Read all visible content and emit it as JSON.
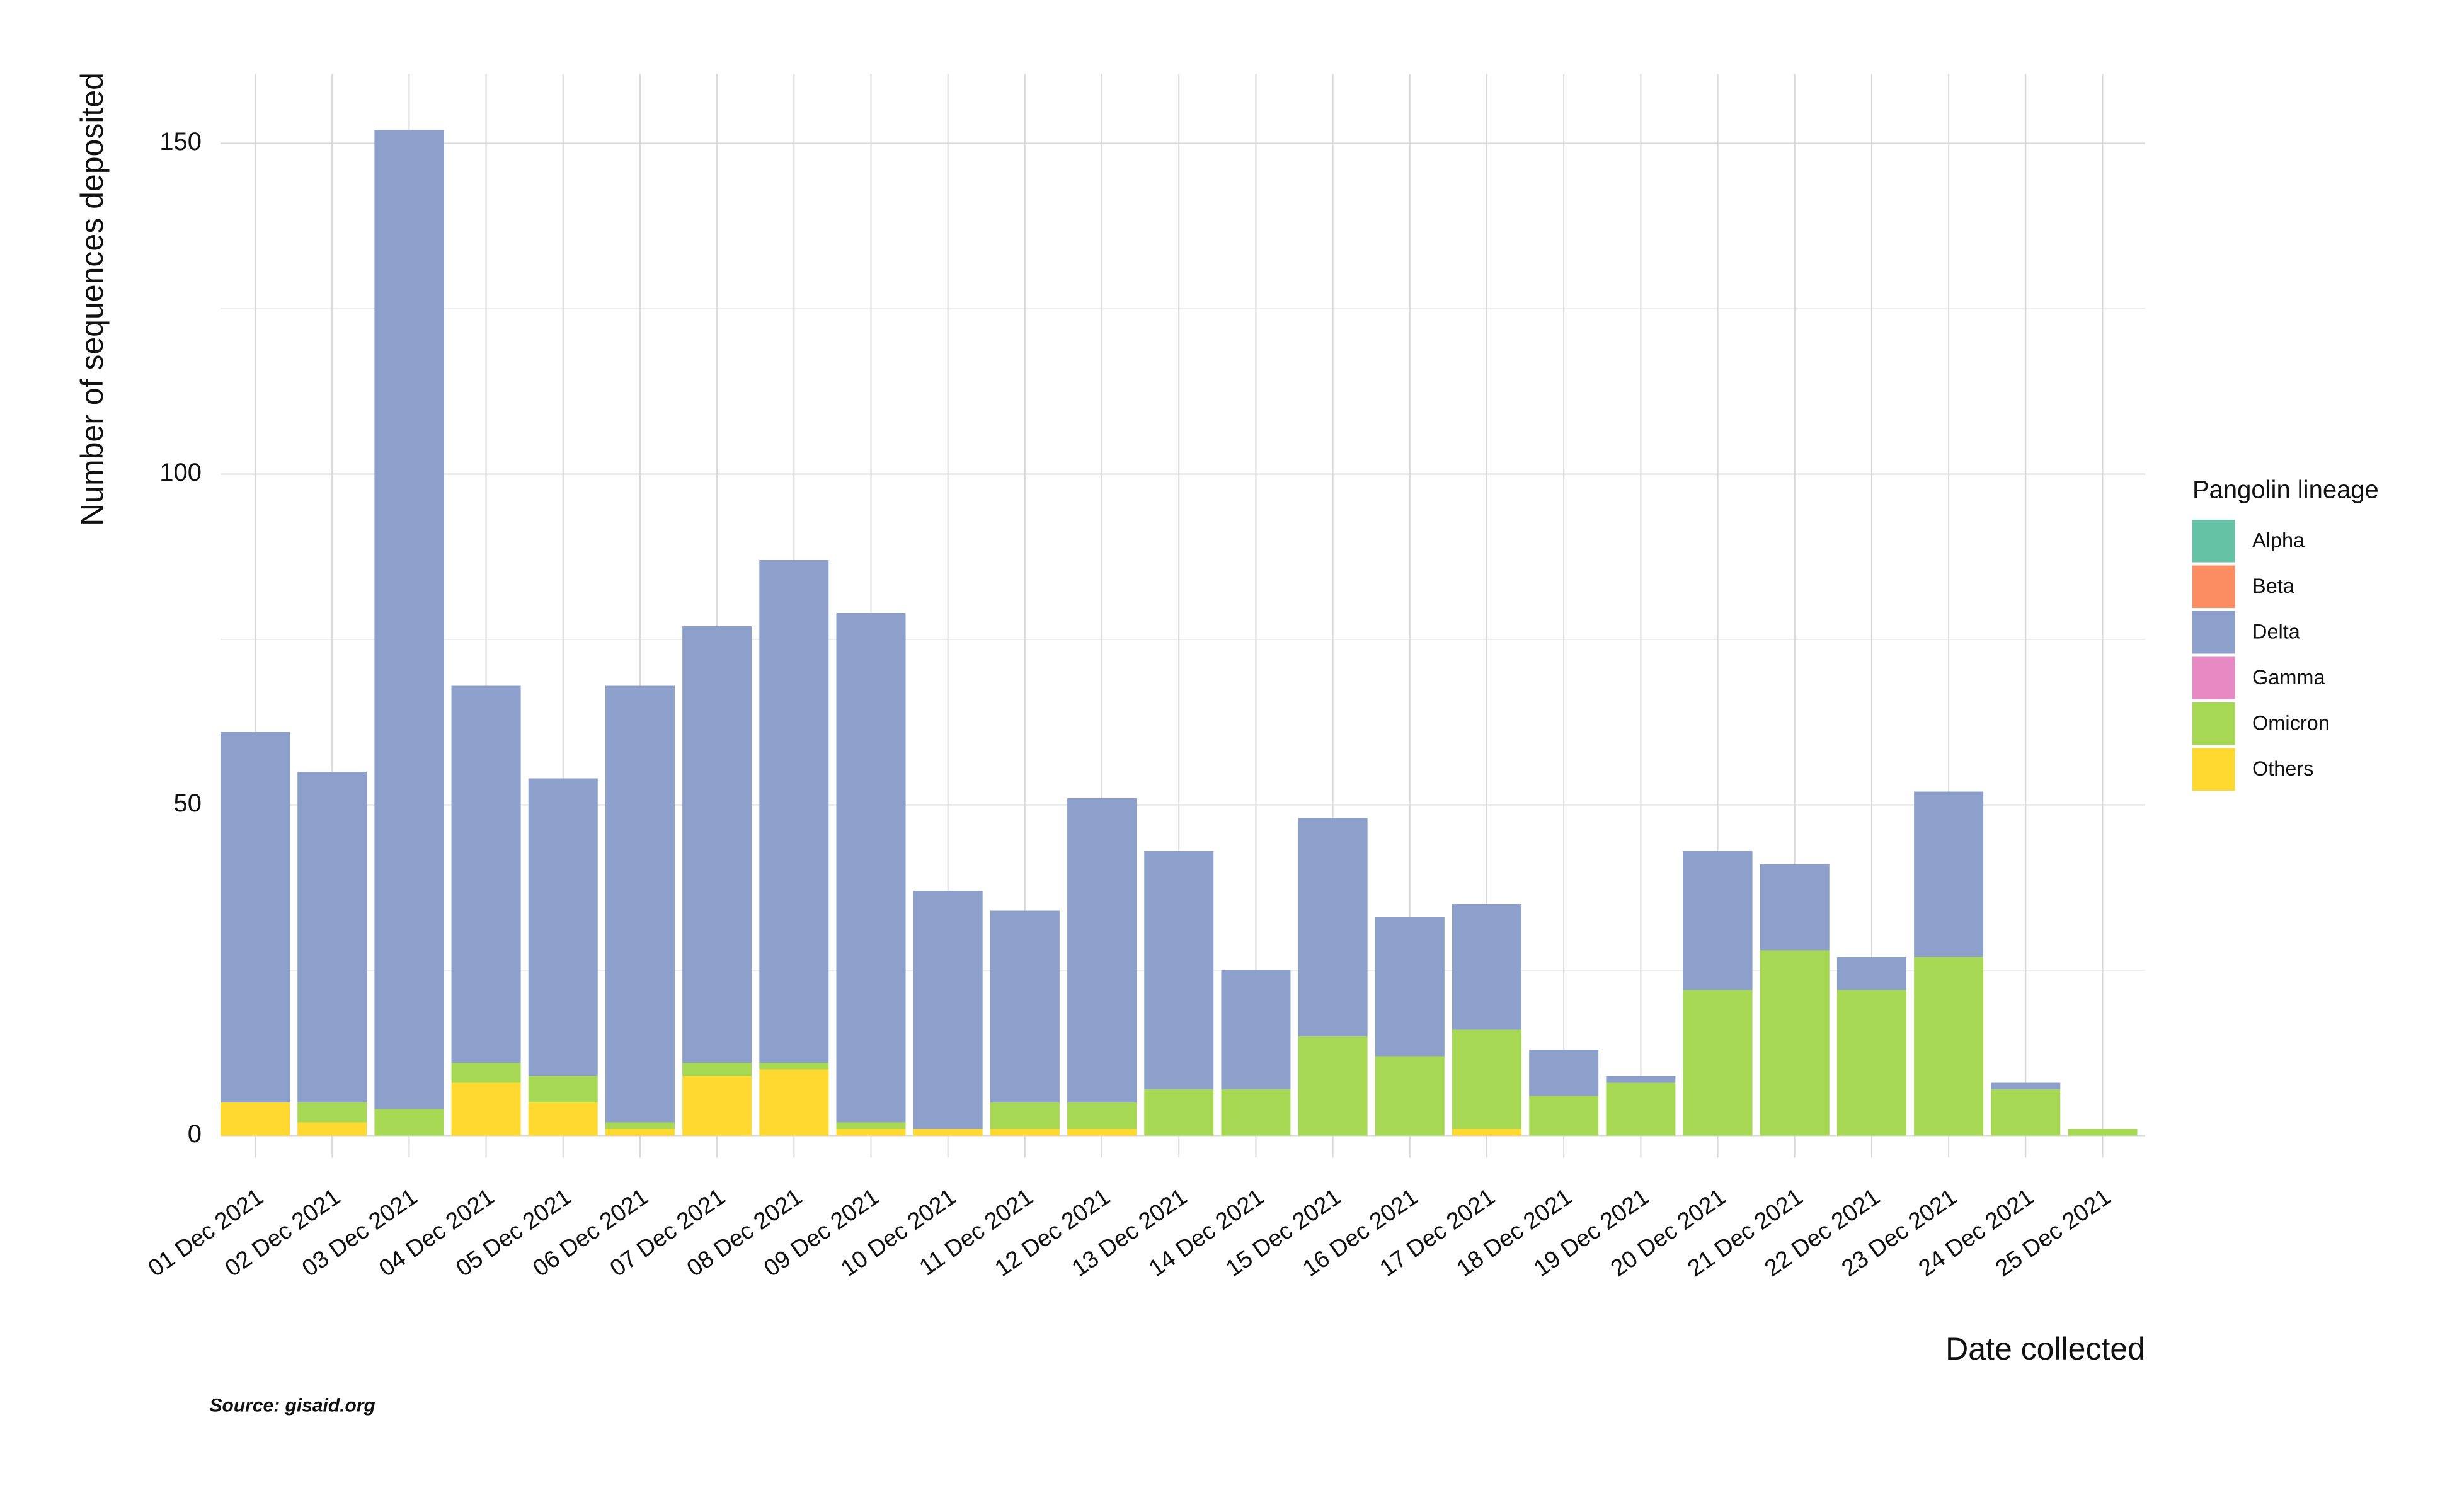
{
  "chart_data": {
    "type": "stacked-bar",
    "y_label": "Number of sequences deposited",
    "x_label": "Date collected",
    "legend_title": "Pangolin lineage",
    "source": "Source: gisaid.org",
    "categories": [
      "01 Dec 2021",
      "02 Dec 2021",
      "03 Dec 2021",
      "04 Dec 2021",
      "05 Dec 2021",
      "06 Dec 2021",
      "07 Dec 2021",
      "08 Dec 2021",
      "09 Dec 2021",
      "10 Dec 2021",
      "11 Dec 2021",
      "12 Dec 2021",
      "13 Dec 2021",
      "14 Dec 2021",
      "15 Dec 2021",
      "16 Dec 2021",
      "17 Dec 2021",
      "18 Dec 2021",
      "19 Dec 2021",
      "20 Dec 2021",
      "21 Dec 2021",
      "22 Dec 2021",
      "23 Dec 2021",
      "24 Dec 2021",
      "25 Dec 2021"
    ],
    "series": [
      {
        "name": "Alpha",
        "color": "#66c2a5",
        "values": [
          0,
          0,
          0,
          0,
          0,
          0,
          0,
          0,
          0,
          0,
          0,
          0,
          0,
          0,
          0,
          0,
          0,
          0,
          0,
          0,
          0,
          0,
          0,
          0,
          0
        ]
      },
      {
        "name": "Beta",
        "color": "#fc8d62",
        "values": [
          0,
          0,
          0,
          0,
          0,
          0,
          0,
          0,
          0,
          0,
          0,
          0,
          0,
          0,
          0,
          0,
          0,
          0,
          0,
          0,
          0,
          0,
          0,
          0,
          0
        ]
      },
      {
        "name": "Delta",
        "color": "#8da0cb",
        "values": [
          56,
          50,
          148,
          57,
          45,
          66,
          66,
          76,
          77,
          36,
          29,
          46,
          36,
          18,
          33,
          21,
          19,
          7,
          1,
          21,
          13,
          5,
          25,
          1,
          0
        ]
      },
      {
        "name": "Gamma",
        "color": "#e78ac3",
        "values": [
          0,
          0,
          0,
          0,
          0,
          0,
          0,
          0,
          0,
          0,
          0,
          0,
          0,
          0,
          0,
          0,
          0,
          0,
          0,
          0,
          0,
          0,
          0,
          0,
          0
        ]
      },
      {
        "name": "Omicron",
        "color": "#a6d854",
        "values": [
          0,
          3,
          4,
          3,
          4,
          1,
          2,
          1,
          1,
          0,
          4,
          4,
          7,
          7,
          15,
          12,
          15,
          6,
          8,
          22,
          28,
          22,
          27,
          7,
          1
        ]
      },
      {
        "name": "Others",
        "color": "#ffd92f",
        "values": [
          5,
          2,
          0,
          8,
          5,
          1,
          9,
          10,
          1,
          1,
          1,
          1,
          0,
          0,
          0,
          0,
          1,
          0,
          0,
          0,
          0,
          0,
          0,
          0,
          0
        ]
      }
    ],
    "ylim": [
      0,
      160
    ],
    "yticks": [
      0,
      50,
      100,
      150
    ],
    "minor_yticks": [
      25,
      75,
      125
    ],
    "grid": true
  }
}
